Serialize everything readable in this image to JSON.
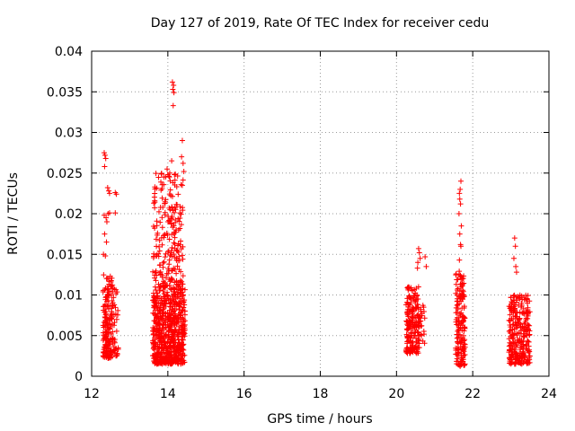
{
  "chart_data": {
    "type": "scatter",
    "title": "Day 127 of 2019, Rate Of TEC Index for receiver cedu",
    "xlabel": "GPS time / hours",
    "ylabel": "ROTI / TECUs",
    "xlim": [
      12,
      24
    ],
    "ylim": [
      0,
      0.04
    ],
    "xticks": [
      12,
      14,
      16,
      18,
      20,
      22,
      24
    ],
    "yticks": [
      0,
      0.005,
      0.01,
      0.015,
      0.02,
      0.025,
      0.03,
      0.035,
      0.04
    ],
    "xtick_labels": [
      "12",
      "14",
      "16",
      "18",
      "20",
      "22",
      "24"
    ],
    "ytick_labels": [
      "0",
      "0.005",
      "0.01",
      "0.015",
      "0.02",
      "0.025",
      "0.03",
      "0.035",
      "0.04"
    ],
    "grid": true,
    "marker": "+",
    "color": "#ff0000",
    "series": [
      {
        "name": "ROTI",
        "clusters": [
          {
            "x_range": [
              12.3,
              12.55
            ],
            "y_range": [
              0.0022,
              0.0125
            ],
            "count": 170
          },
          {
            "x_range": [
              12.55,
              12.7
            ],
            "y_range": [
              0.0025,
              0.011
            ],
            "count": 35
          },
          {
            "x_range": [
              13.6,
              14.45
            ],
            "y_range": [
              0.0015,
              0.011
            ],
            "count": 650
          },
          {
            "x_range": [
              13.6,
              14.4
            ],
            "y_range": [
              0.011,
              0.025
            ],
            "count": 210
          },
          {
            "x_range": [
              20.25,
              20.6
            ],
            "y_range": [
              0.0028,
              0.011
            ],
            "count": 190
          },
          {
            "x_range": [
              20.55,
              20.75
            ],
            "y_range": [
              0.004,
              0.009
            ],
            "count": 30
          },
          {
            "x_range": [
              21.55,
              21.8
            ],
            "y_range": [
              0.0012,
              0.013
            ],
            "count": 160
          },
          {
            "x_range": [
              22.95,
              23.5
            ],
            "y_range": [
              0.0015,
              0.01
            ],
            "count": 280
          }
        ],
        "points": [
          [
            12.33,
            0.0275
          ],
          [
            12.35,
            0.0272
          ],
          [
            12.37,
            0.0268
          ],
          [
            12.34,
            0.0258
          ],
          [
            12.42,
            0.0232
          ],
          [
            12.45,
            0.0228
          ],
          [
            12.47,
            0.0225
          ],
          [
            12.62,
            0.0226
          ],
          [
            12.65,
            0.0224
          ],
          [
            12.33,
            0.0198
          ],
          [
            12.38,
            0.0195
          ],
          [
            12.4,
            0.019
          ],
          [
            12.43,
            0.02
          ],
          [
            12.47,
            0.0201
          ],
          [
            12.62,
            0.0201
          ],
          [
            12.34,
            0.0175
          ],
          [
            12.39,
            0.0165
          ],
          [
            12.31,
            0.015
          ],
          [
            12.36,
            0.0148
          ],
          [
            14.12,
            0.0362
          ],
          [
            14.15,
            0.0358
          ],
          [
            14.13,
            0.0353
          ],
          [
            14.16,
            0.0349
          ],
          [
            14.14,
            0.0333
          ],
          [
            14.38,
            0.029
          ],
          [
            14.36,
            0.027
          ],
          [
            14.4,
            0.0262
          ],
          [
            14.42,
            0.0252
          ],
          [
            14.38,
            0.0235
          ],
          [
            14.1,
            0.0265
          ],
          [
            13.98,
            0.0255
          ],
          [
            14.05,
            0.025
          ],
          [
            13.9,
            0.0245
          ],
          [
            14.0,
            0.0248
          ],
          [
            20.58,
            0.0157
          ],
          [
            20.6,
            0.0152
          ],
          [
            20.56,
            0.014
          ],
          [
            20.62,
            0.0145
          ],
          [
            20.55,
            0.0133
          ],
          [
            20.75,
            0.0147
          ],
          [
            20.78,
            0.0135
          ],
          [
            21.69,
            0.024
          ],
          [
            21.67,
            0.023
          ],
          [
            21.65,
            0.0225
          ],
          [
            21.66,
            0.0218
          ],
          [
            21.68,
            0.0212
          ],
          [
            21.64,
            0.02
          ],
          [
            21.7,
            0.0185
          ],
          [
            21.66,
            0.0175
          ],
          [
            21.68,
            0.0162
          ],
          [
            21.69,
            0.016
          ],
          [
            21.65,
            0.0143
          ],
          [
            23.1,
            0.017
          ],
          [
            23.12,
            0.016
          ],
          [
            23.08,
            0.0145
          ],
          [
            23.13,
            0.0135
          ],
          [
            23.15,
            0.0128
          ]
        ]
      }
    ]
  }
}
